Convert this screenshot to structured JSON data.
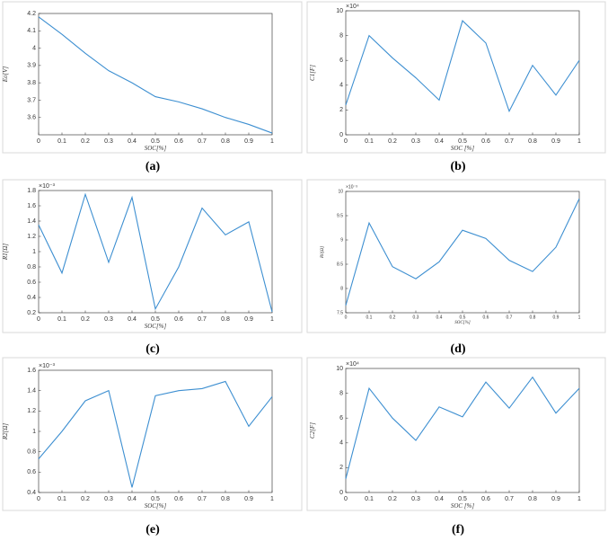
{
  "chart_data": [
    {
      "type": "line",
      "caption": "(a)",
      "xlabel": "SOC[%]",
      "ylabel": "Eo[V]",
      "x": [
        0,
        0.1,
        0.2,
        0.3,
        0.4,
        0.5,
        0.6,
        0.7,
        0.8,
        0.9,
        1
      ],
      "series": [
        {
          "color": "#3d8fd1",
          "values": [
            4.18,
            4.08,
            3.97,
            3.87,
            3.8,
            3.72,
            3.69,
            3.65,
            3.6,
            3.56,
            3.51
          ]
        }
      ],
      "xlim": [
        0,
        1
      ],
      "xticks": [
        0,
        0.1,
        0.2,
        0.3,
        0.4,
        0.5,
        0.6,
        0.7,
        0.8,
        0.9,
        1
      ],
      "ylim": [
        3.5,
        4.2
      ],
      "yticks": [
        3.6,
        3.7,
        3.8,
        3.9,
        4,
        4.1,
        4.2
      ]
    },
    {
      "type": "line",
      "caption": "(b)",
      "xlabel": "SOC [%]",
      "ylabel": "C1[F]",
      "exponent": "×10⁴",
      "x": [
        0,
        0.1,
        0.2,
        0.3,
        0.4,
        0.5,
        0.6,
        0.7,
        0.8,
        0.9,
        1
      ],
      "series": [
        {
          "color": "#3d8fd1",
          "values": [
            2.4,
            8.0,
            6.2,
            4.6,
            2.8,
            9.2,
            7.4,
            1.9,
            5.6,
            3.2,
            6.0
          ]
        }
      ],
      "xlim": [
        0,
        1
      ],
      "xticks": [
        0,
        0.1,
        0.2,
        0.3,
        0.4,
        0.5,
        0.6,
        0.7,
        0.8,
        0.9,
        1
      ],
      "ylim": [
        0,
        10
      ],
      "yticks": [
        0,
        2,
        4,
        6,
        8,
        10
      ]
    },
    {
      "type": "line",
      "caption": "(c)",
      "xlabel": "SOC[%]",
      "ylabel": "R1[Ω]",
      "exponent": "×10⁻³",
      "x": [
        0,
        0.1,
        0.2,
        0.3,
        0.4,
        0.5,
        0.6,
        0.7,
        0.8,
        0.9,
        1
      ],
      "series": [
        {
          "color": "#3d8fd1",
          "values": [
            1.35,
            0.72,
            1.75,
            0.86,
            1.71,
            0.25,
            0.8,
            1.57,
            1.22,
            1.39,
            0.21
          ]
        }
      ],
      "xlim": [
        0,
        1
      ],
      "xticks": [
        0,
        0.1,
        0.2,
        0.3,
        0.4,
        0.5,
        0.6,
        0.7,
        0.8,
        0.9,
        1
      ],
      "ylim": [
        0.2,
        1.8
      ],
      "yticks": [
        0.2,
        0.4,
        0.6,
        0.8,
        1,
        1.2,
        1.4,
        1.6,
        1.8
      ]
    },
    {
      "type": "line",
      "caption": "(d)",
      "xlabel": "SOC[%]",
      "ylabel": "R0[Ω]",
      "exponent": "×10⁻³",
      "x": [
        0,
        0.1,
        0.2,
        0.3,
        0.4,
        0.5,
        0.6,
        0.7,
        0.8,
        0.9,
        1
      ],
      "series": [
        {
          "color": "#3d8fd1",
          "values": [
            7.65,
            9.35,
            8.45,
            8.2,
            8.55,
            9.2,
            9.03,
            8.58,
            8.35,
            8.85,
            9.85
          ]
        }
      ],
      "xlim": [
        0,
        1
      ],
      "xticks": [
        0,
        0.1,
        0.2,
        0.3,
        0.4,
        0.5,
        0.6,
        0.7,
        0.8,
        0.9,
        1
      ],
      "ylim": [
        7.5,
        10
      ],
      "yticks": [
        7.5,
        8,
        8.5,
        9,
        9.5,
        10
      ]
    },
    {
      "type": "line",
      "caption": "(e)",
      "xlabel": "SOC[%]",
      "ylabel": "R2[Ω]",
      "exponent": "×10⁻³",
      "x": [
        0,
        0.1,
        0.2,
        0.3,
        0.4,
        0.5,
        0.6,
        0.7,
        0.8,
        0.9,
        1
      ],
      "series": [
        {
          "color": "#3d8fd1",
          "values": [
            0.73,
            1.0,
            1.3,
            1.4,
            0.45,
            1.35,
            1.4,
            1.42,
            1.49,
            1.05,
            1.34
          ]
        }
      ],
      "xlim": [
        0,
        1
      ],
      "xticks": [
        0,
        0.1,
        0.2,
        0.3,
        0.4,
        0.5,
        0.6,
        0.7,
        0.8,
        0.9,
        1
      ],
      "ylim": [
        0.4,
        1.6
      ],
      "yticks": [
        0.4,
        0.6,
        0.8,
        1,
        1.2,
        1.4,
        1.6
      ]
    },
    {
      "type": "line",
      "caption": "(f)",
      "xlabel": "SOC [%]",
      "ylabel": "C2[F]",
      "exponent": "×10⁴",
      "x": [
        0,
        0.1,
        0.2,
        0.3,
        0.4,
        0.5,
        0.6,
        0.7,
        0.8,
        0.9,
        1
      ],
      "series": [
        {
          "color": "#3d8fd1",
          "values": [
            1.1,
            8.4,
            6.0,
            4.2,
            6.9,
            6.1,
            8.9,
            6.8,
            9.3,
            6.4,
            8.4
          ]
        }
      ],
      "xlim": [
        0,
        1
      ],
      "xticks": [
        0,
        0.1,
        0.2,
        0.3,
        0.4,
        0.5,
        0.6,
        0.7,
        0.8,
        0.9,
        1
      ],
      "ylim": [
        0,
        10
      ],
      "yticks": [
        0,
        2,
        4,
        6,
        8,
        10
      ]
    }
  ]
}
